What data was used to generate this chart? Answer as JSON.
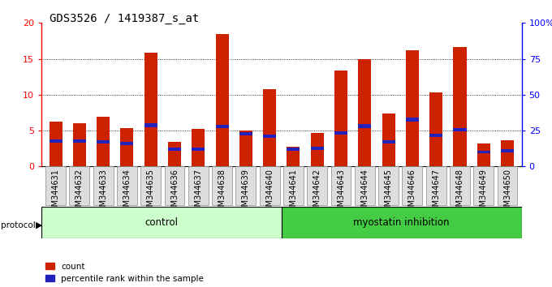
{
  "title": "GDS3526 / 1419387_s_at",
  "categories": [
    "GSM344631",
    "GSM344632",
    "GSM344633",
    "GSM344634",
    "GSM344635",
    "GSM344636",
    "GSM344637",
    "GSM344638",
    "GSM344639",
    "GSM344640",
    "GSM344641",
    "GSM344642",
    "GSM344643",
    "GSM344644",
    "GSM344645",
    "GSM344646",
    "GSM344647",
    "GSM344648",
    "GSM344649",
    "GSM344650"
  ],
  "count_values": [
    6.3,
    6.0,
    6.9,
    5.4,
    15.8,
    3.4,
    5.2,
    18.4,
    5.0,
    10.8,
    2.8,
    4.7,
    13.4,
    15.0,
    7.4,
    16.2,
    10.3,
    16.6,
    3.2,
    3.6
  ],
  "percentile_bottom": [
    3.3,
    3.3,
    3.2,
    3.0,
    5.5,
    2.2,
    2.2,
    5.3,
    4.3,
    4.0,
    2.2,
    2.3,
    4.4,
    5.4,
    3.2,
    6.3,
    4.1,
    4.9,
    1.8,
    2.0
  ],
  "percentile_height": [
    0.5,
    0.5,
    0.45,
    0.45,
    0.5,
    0.4,
    0.4,
    0.5,
    0.45,
    0.45,
    0.4,
    0.4,
    0.45,
    0.5,
    0.45,
    0.5,
    0.45,
    0.5,
    0.4,
    0.4
  ],
  "control_count": 10,
  "myostatin_count": 10,
  "bar_color": "#CC2200",
  "percentile_color": "#2222BB",
  "control_bg": "#CCFFCC",
  "myostatin_bg": "#44CC44",
  "ylim": [
    0,
    20
  ],
  "yticks": [
    0,
    5,
    10,
    15,
    20
  ],
  "grid_values": [
    5,
    10,
    15
  ],
  "title_fontsize": 10,
  "tick_fontsize": 7,
  "bar_width": 0.55
}
